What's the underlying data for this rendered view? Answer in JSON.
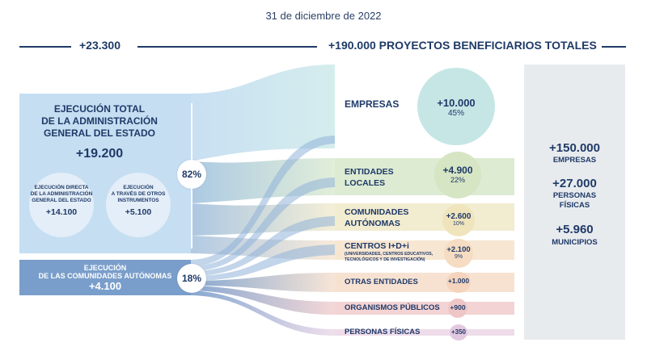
{
  "date": "31 de diciembre de 2022",
  "header": {
    "left_total": "+23.300",
    "right_total": "+190.000 PROYECTOS BENEFICIARIOS TOTALES"
  },
  "left": {
    "age": {
      "title_lines": [
        "EJECUCIÓN TOTAL",
        "DE LA ADMINISTRACIÓN",
        "GENERAL DEL ESTADO"
      ],
      "value": "+19.200",
      "percent": "82%",
      "direct": {
        "label_lines": [
          "EJECUCIÓN DIRECTA",
          "DE LA ADMINISTRACIÓN",
          "GENERAL DEL ESTADO"
        ],
        "value": "+14.100"
      },
      "instruments": {
        "label_lines": [
          "EJECUCIÓN",
          "A TRAVÉS DE OTROS",
          "INSTRUMENTOS"
        ],
        "value": "+5.100"
      }
    },
    "ccaa": {
      "title_lines": [
        "EJECUCIÓN",
        "DE LAS COMUNIDADES AUTÓNOMAS"
      ],
      "value": "+4.100",
      "percent": "18%"
    }
  },
  "categories": [
    {
      "label_lines": [
        "EMPRESAS"
      ],
      "value": "+10.000",
      "percent": "45%",
      "color": "#d3ecec",
      "bubble_color": "#c6e6e6"
    },
    {
      "label_lines": [
        "ENTIDADES",
        "LOCALES"
      ],
      "value": "+4.900",
      "percent": "22%",
      "color": "#dcebd2",
      "bubble_color": "#d6e5c3"
    },
    {
      "label_lines": [
        "COMUNIDADES",
        "AUTÓNOMAS"
      ],
      "value": "+2.600",
      "percent": "10%",
      "color": "#f2ecd0",
      "bubble_color": "#f0e4bd"
    },
    {
      "label_lines": [
        "CENTROS  I+D+i"
      ],
      "sub_lines": [
        "(UNIVERSIDADES, CENTROS EDUCATIVOS,",
        "TECNOLÓGICOS Y DE INVESTIGACIÓN)"
      ],
      "value": "+2.100",
      "percent": "9%",
      "color": "#f7e6d2",
      "bubble_color": "#f5dcc2"
    },
    {
      "label_lines": [
        "OTRAS ENTIDADES"
      ],
      "value": "+1.000",
      "percent": "",
      "color": "#f7e2d2",
      "bubble_color": "#f4d4bd"
    },
    {
      "label_lines": [
        "ORGANISMOS PÚBLICOS"
      ],
      "value": "+900",
      "percent": "",
      "color": "#f3d3d3",
      "bubble_color": "#efc6c6"
    },
    {
      "label_lines": [
        "PERSONAS FÍSICAS"
      ],
      "value": "+350",
      "percent": "",
      "color": "#eedcea",
      "bubble_color": "#e3c9e0"
    }
  ],
  "beneficiaries": [
    {
      "value": "+150.000",
      "label_lines": [
        "EMPRESAS"
      ]
    },
    {
      "value": "+27.000",
      "label_lines": [
        "PERSONAS",
        "FÍSICAS"
      ]
    },
    {
      "value": "+5.960",
      "label_lines": [
        "MUNICIPIOS"
      ]
    }
  ]
}
